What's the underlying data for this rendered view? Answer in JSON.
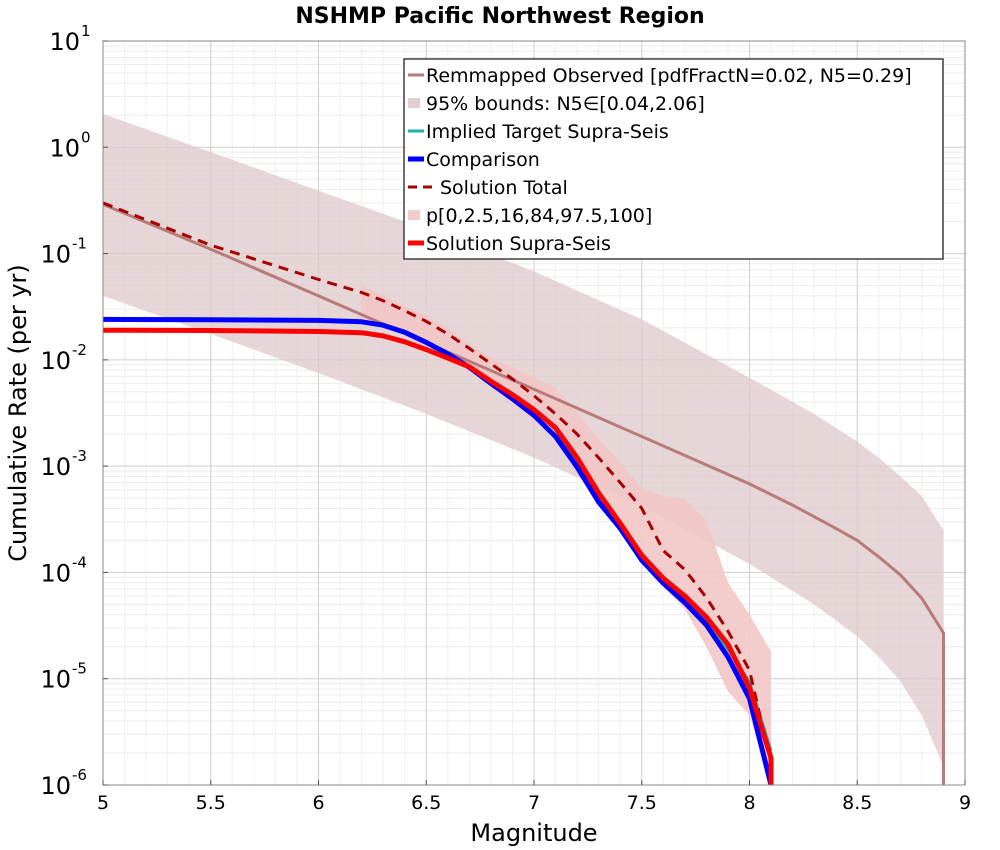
{
  "chart_data": {
    "type": "line",
    "title": "NSHMP Pacific Northwest Region",
    "xlabel": "Magnitude",
    "ylabel": "Cumulative Rate (per yr)",
    "xlim": [
      5,
      9
    ],
    "ylim": [
      1e-06,
      10
    ],
    "yscale": "log",
    "grid": true,
    "legend_position": "top-right",
    "x_ticks": [
      "5",
      "5.5",
      "6",
      "6.5",
      "7",
      "7.5",
      "8",
      "8.5",
      "9"
    ],
    "y_ticks": [
      {
        "base": "10",
        "exp": "-6"
      },
      {
        "base": "10",
        "exp": "-5"
      },
      {
        "base": "10",
        "exp": "-4"
      },
      {
        "base": "10",
        "exp": "-3"
      },
      {
        "base": "10",
        "exp": "-2"
      },
      {
        "base": "10",
        "exp": "-1"
      },
      {
        "base": "10",
        "exp": "0"
      },
      {
        "base": "10",
        "exp": "1"
      }
    ],
    "legend": [
      "Remmapped Observed [pdfFractN=0.02, N5=0.29]",
      "95% bounds: N5∈[0.04,2.06]",
      "Implied Target Supra-Seis",
      "Comparison",
      "Solution Total",
      "p[0,2.5,16,84,97.5,100]",
      "Solution Supra-Seis"
    ],
    "bands": [
      {
        "legend_index": 1,
        "color": "#dfc8ca",
        "x": [
          5.0,
          5.5,
          6.0,
          6.5,
          7.0,
          7.5,
          8.0,
          8.3,
          8.5,
          8.6,
          8.7,
          8.8,
          8.9
        ],
        "upper": [
          2.06,
          0.9,
          0.39,
          0.17,
          0.068,
          0.024,
          0.0068,
          0.0031,
          0.0017,
          0.0012,
          0.0008,
          0.00052,
          0.00025
        ],
        "lower": [
          0.04,
          0.0175,
          0.0075,
          0.0031,
          0.0012,
          0.00042,
          0.00012,
          5e-05,
          2.5e-05,
          1.6e-05,
          9.5e-06,
          4.5e-06,
          1.5e-06
        ]
      },
      {
        "legend_index": 5,
        "color": "#f2c6c6",
        "x": [
          6.2,
          6.3,
          6.4,
          6.5,
          6.6,
          6.7,
          6.8,
          6.9,
          7.0,
          7.1,
          7.2,
          7.3,
          7.4,
          7.5,
          7.6,
          7.7,
          7.8,
          7.9,
          8.0,
          8.1
        ],
        "upper": [
          0.05,
          0.04,
          0.032,
          0.026,
          0.02,
          0.014,
          0.0105,
          0.0085,
          0.0069,
          0.0055,
          0.0032,
          0.0018,
          0.0011,
          0.00062,
          0.00052,
          0.00049,
          0.00031,
          8e-05,
          4e-05,
          1.8e-05
        ],
        "lower": [
          0.025,
          0.021,
          0.017,
          0.012,
          0.0095,
          0.0082,
          0.0055,
          0.0039,
          0.0027,
          0.0019,
          0.0009,
          0.00048,
          0.00026,
          0.000125,
          7.4e-05,
          4.5e-05,
          2e-05,
          7.6e-06,
          4.5e-06,
          1e-06
        ]
      }
    ],
    "series": [
      {
        "name": "Remmapped Observed [pdfFractN=0.02, N5=0.29]",
        "color": "#b87b7b",
        "dash": "solid",
        "width": 3,
        "x": [
          5.0,
          5.5,
          6.0,
          6.5,
          7.0,
          7.5,
          8.0,
          8.2,
          8.4,
          8.5,
          8.6,
          8.7,
          8.8,
          8.9,
          8.9
        ],
        "values": [
          0.29,
          0.11,
          0.04,
          0.0145,
          0.0053,
          0.0019,
          0.00068,
          0.00043,
          0.00026,
          0.0002,
          0.00014,
          9.5e-05,
          5.7e-05,
          2.7e-05,
          1e-06
        ]
      },
      {
        "name": "Implied Target Supra-Seis",
        "color": "#23b0a6",
        "dash": "solid",
        "width": 3,
        "x": [
          5.0,
          5.5,
          6.0,
          6.2,
          6.3,
          6.4,
          6.5,
          6.6,
          6.7,
          6.8,
          6.9,
          7.0,
          7.1,
          7.2,
          7.3,
          7.4,
          7.5,
          7.6,
          7.7,
          7.8,
          7.9,
          8.0,
          8.1
        ],
        "values": [
          0.024,
          0.0238,
          0.0235,
          0.0228,
          0.0212,
          0.0182,
          0.0146,
          0.0114,
          0.0086,
          0.0062,
          0.0046,
          0.0034,
          0.0022,
          0.0011,
          0.00053,
          0.00029,
          0.00014,
          8.8e-05,
          5.8e-05,
          3.6e-05,
          1.9e-05,
          9.3e-06,
          2.1e-06
        ]
      },
      {
        "name": "Comparison",
        "color": "#0000ff",
        "dash": "solid",
        "width": 5,
        "x": [
          5.0,
          5.5,
          6.0,
          6.2,
          6.3,
          6.4,
          6.5,
          6.6,
          6.7,
          6.8,
          6.9,
          7.0,
          7.1,
          7.2,
          7.3,
          7.4,
          7.5,
          7.6,
          7.7,
          7.8,
          7.9,
          8.0,
          8.1
        ],
        "values": [
          0.024,
          0.0238,
          0.0235,
          0.0228,
          0.0212,
          0.0182,
          0.0146,
          0.0114,
          0.0085,
          0.006,
          0.0043,
          0.003,
          0.0019,
          0.00098,
          0.00046,
          0.00026,
          0.00013,
          7.9e-05,
          5.2e-05,
          3.2e-05,
          1.6e-05,
          6.5e-06,
          1e-06
        ]
      },
      {
        "name": "Solution Total",
        "color": "#a80000",
        "dash": "dashed",
        "width": 3,
        "x": [
          5.0,
          5.5,
          6.0,
          6.2,
          6.3,
          6.4,
          6.5,
          6.6,
          6.7,
          6.8,
          6.9,
          7.0,
          7.1,
          7.2,
          7.3,
          7.4,
          7.5,
          7.6,
          7.7,
          7.8,
          7.9,
          8.0,
          8.1
        ],
        "values": [
          0.3,
          0.12,
          0.057,
          0.043,
          0.036,
          0.029,
          0.023,
          0.0175,
          0.0128,
          0.0092,
          0.0066,
          0.0046,
          0.0031,
          0.002,
          0.0012,
          0.0007,
          0.0004,
          0.00016,
          0.000106,
          5.8e-05,
          2.8e-05,
          1.2e-05,
          1.6e-06
        ]
      },
      {
        "name": "Solution Supra-Seis",
        "color": "#ff0000",
        "dash": "solid",
        "width": 5,
        "x": [
          5.0,
          5.5,
          6.0,
          6.2,
          6.3,
          6.4,
          6.5,
          6.6,
          6.7,
          6.8,
          6.9,
          7.0,
          7.1,
          7.2,
          7.3,
          7.4,
          7.5,
          7.6,
          7.7,
          7.8,
          7.9,
          8.0,
          8.1,
          8.1
        ],
        "values": [
          0.019,
          0.0189,
          0.0185,
          0.018,
          0.0168,
          0.0148,
          0.0125,
          0.0104,
          0.0086,
          0.0063,
          0.0047,
          0.0034,
          0.0023,
          0.0012,
          0.00056,
          0.00029,
          0.000145,
          8.8e-05,
          6e-05,
          3.8e-05,
          2.1e-05,
          8.2e-06,
          1.8e-06,
          1e-06
        ]
      }
    ]
  }
}
